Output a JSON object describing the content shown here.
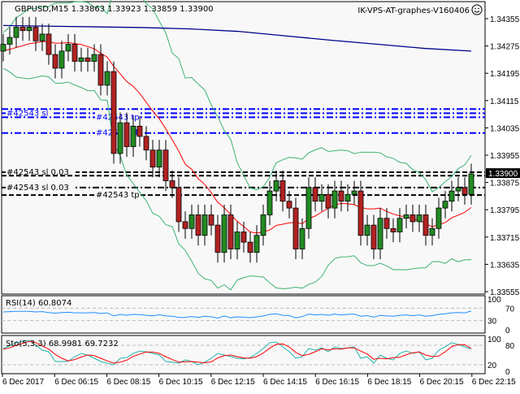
{
  "header": {
    "symbol_info": "GBPUSD,M15  1.33863 1.33923 1.33859 1.33900",
    "expert_name": "IK-VPS-AT-graphes-V160406",
    "expert_icon": "smiley-icon"
  },
  "price_axis": {
    "ticks": [
      "1.34355",
      "1.34275",
      "1.34195",
      "1.34115",
      "1.34035",
      "1.33955",
      "1.33875",
      "1.33795",
      "1.33715",
      "1.33635",
      "1.33555"
    ],
    "tick_values": [
      1.34355,
      1.34275,
      1.34195,
      1.34115,
      1.34035,
      1.33955,
      1.33875,
      1.33795,
      1.33715,
      1.33635,
      1.33555
    ],
    "current_price": "1.33900",
    "current_value": 1.339
  },
  "time_axis": [
    "6 Dec 2017",
    "6 Dec 06:15",
    "6 Dec 08:15",
    "6 Dec 10:15",
    "6 Dec 12:15",
    "6 Dec 14:15",
    "6 Dec 16:15",
    "6 Dec 18:15",
    "6 Dec 20:15",
    "6 Dec 22:15"
  ],
  "colors": {
    "bull": "#228b22",
    "bear": "#b22222",
    "ma_fast": "#ff0000",
    "ma_slow": "#00008b",
    "bands": "#3cb371",
    "order_lines": "#0000ff",
    "rsi": "#1e90ff",
    "sto_main": "#20b2aa",
    "sto_signal": "#ff0000"
  },
  "chart_data": {
    "type": "candlestick",
    "first_open": 1.3426,
    "closes": [
      1.3428,
      1.343,
      1.3433,
      1.3432,
      1.3433,
      1.3429,
      1.3431,
      1.3425,
      1.3421,
      1.3426,
      1.3428,
      1.3423,
      1.3424,
      1.3423,
      1.3425,
      1.3416,
      1.342,
      1.3396,
      1.3405,
      1.3398,
      1.3404,
      1.3401,
      1.3397,
      1.3392,
      1.3397,
      1.3388,
      1.3386,
      1.3376,
      1.3374,
      1.3378,
      1.3372,
      1.3378,
      1.3375,
      1.3367,
      1.3378,
      1.3368,
      1.3373,
      1.337,
      1.3367,
      1.3372,
      1.3378,
      1.3385,
      1.3388,
      1.3382,
      1.338,
      1.3368,
      1.3374,
      1.3386,
      1.3382,
      1.3384,
      1.338,
      1.3385,
      1.3382,
      1.3384,
      1.3385,
      1.3372,
      1.3375,
      1.3368,
      1.3377,
      1.3374,
      1.3373,
      1.3377,
      1.3378,
      1.3376,
      1.3378,
      1.3372,
      1.3374,
      1.338,
      1.3382,
      1.3385,
      1.3386,
      1.3384,
      1.339
    ],
    "ma_slow": [
      1.34335,
      1.34333,
      1.34331,
      1.34329,
      1.34325,
      1.34318,
      1.34305,
      1.34292,
      1.3428,
      1.34268,
      1.3426
    ],
    "order_lines": [
      {
        "label": "#42543 sl",
        "price": 1.34078,
        "style": "dashdot",
        "color": "blue"
      },
      {
        "label": "#42543 tp",
        "price": 1.34066,
        "style": "dashdot",
        "color": "blue"
      },
      {
        "label": "",
        "price": 1.3409,
        "style": "dashdot",
        "color": "blue"
      },
      {
        "label": "#42543 sl",
        "price": 1.3402,
        "style": "dashdot",
        "color": "blue"
      },
      {
        "label": "#42543 sl 0.03",
        "price": 1.33905,
        "style": "dashed",
        "color": "black"
      },
      {
        "label": "",
        "price": 1.33895,
        "style": "dashed",
        "color": "black"
      },
      {
        "label": "#42543 sl 0.03",
        "price": 1.3386,
        "style": "dashdot",
        "color": "black"
      },
      {
        "label": "#42543 tp",
        "price": 1.33838,
        "style": "dashed",
        "color": "black"
      }
    ]
  },
  "rsi": {
    "label": "RSI(14) 60.8074",
    "levels": [
      "100",
      "70",
      "30",
      "0"
    ],
    "level_values": [
      100,
      70,
      30,
      0
    ],
    "values": [
      58,
      59,
      60,
      60,
      60,
      58,
      59,
      56,
      54,
      56,
      57,
      55,
      55,
      55,
      56,
      53,
      55,
      45,
      50,
      47,
      50,
      49,
      47,
      45,
      49,
      45,
      44,
      40,
      40,
      43,
      40,
      44,
      42,
      38,
      45,
      39,
      42,
      41,
      39,
      42,
      45,
      50,
      52,
      47,
      46,
      39,
      43,
      51,
      48,
      50,
      47,
      51,
      48,
      50,
      51,
      44,
      46,
      41,
      47,
      45,
      44,
      47,
      48,
      46,
      48,
      44,
      46,
      50,
      52,
      55,
      56,
      55,
      60.8
    ]
  },
  "stochastic": {
    "label": "Sto(5,3,3) 68.9981 69.7232",
    "levels": [
      "100",
      "80",
      "20",
      "0"
    ],
    "level_values": [
      100,
      80,
      20,
      0
    ],
    "main": [
      70,
      78,
      88,
      92,
      95,
      80,
      65,
      60,
      30,
      30,
      31,
      45,
      55,
      50,
      40,
      30,
      25,
      20,
      40,
      42,
      55,
      62,
      60,
      55,
      50,
      30,
      28,
      25,
      35,
      30,
      20,
      28,
      40,
      55,
      50,
      45,
      40,
      38,
      42,
      55,
      70,
      88,
      90,
      75,
      60,
      40,
      45,
      70,
      65,
      72,
      60,
      75,
      70,
      72,
      75,
      40,
      45,
      25,
      50,
      40,
      35,
      55,
      62,
      55,
      60,
      35,
      40,
      65,
      75,
      88,
      82,
      75,
      69
    ],
    "signal": [
      68,
      72,
      80,
      86,
      92,
      88,
      78,
      68,
      52,
      40,
      32,
      36,
      44,
      50,
      48,
      40,
      32,
      25,
      28,
      34,
      46,
      53,
      59,
      59,
      55,
      45,
      36,
      28,
      29,
      30,
      28,
      26,
      29,
      41,
      48,
      50,
      45,
      41,
      40,
      45,
      56,
      71,
      83,
      84,
      75,
      58,
      48,
      52,
      60,
      69,
      66,
      69,
      68,
      72,
      72,
      62,
      53,
      37,
      40,
      38,
      42,
      43,
      51,
      57,
      59,
      50,
      45,
      47,
      60,
      76,
      82,
      82,
      70
    ]
  }
}
